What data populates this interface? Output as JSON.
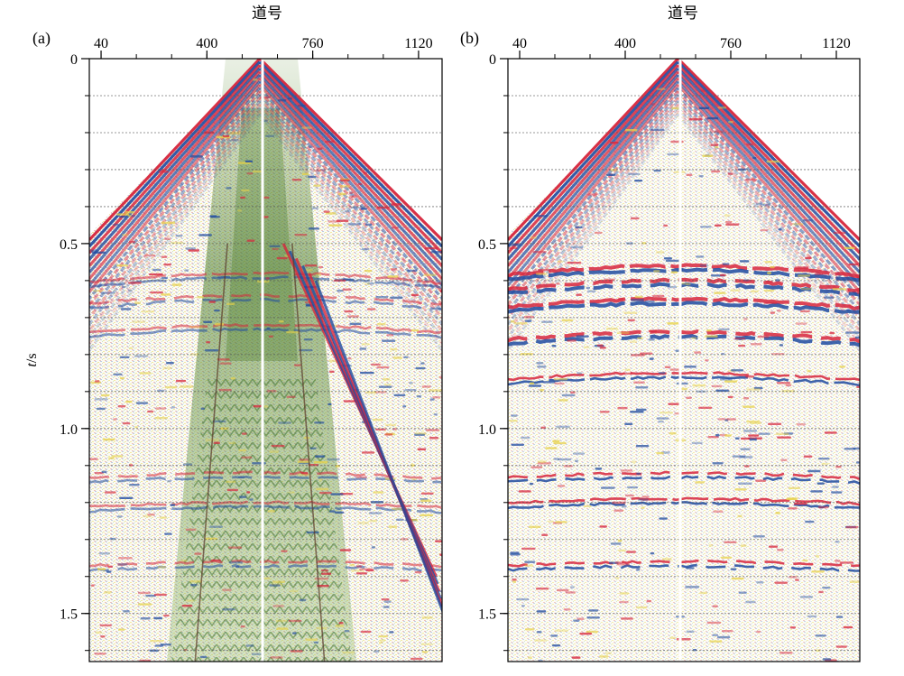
{
  "chart_data": [
    {
      "type": "heatmap",
      "panel_label": "(a)",
      "xlabel": "道号",
      "ylabel_italic": "t",
      "ylabel_unit": "/s",
      "x_ticks": [
        40,
        400,
        760,
        1120
      ],
      "y_ticks": [
        0,
        0.5,
        1.0,
        1.5
      ],
      "y_tick_labels": [
        "0",
        "0.5",
        "1.0",
        "1.5"
      ],
      "xlim": [
        0,
        1200
      ],
      "ylim": [
        0,
        1.63
      ],
      "grid": "horizontal dashed",
      "grid_step_s": 0.1,
      "apex_trace": 580,
      "content": "raw shot gather with strong ground-roll cone",
      "colors": {
        "positive": "#d7263d",
        "negative": "#1f4aa0",
        "weak": "#e7d24a",
        "groundroll": "#4a7a2c"
      }
    },
    {
      "type": "heatmap",
      "panel_label": "(b)",
      "xlabel": "道号",
      "ylabel_italic": "",
      "ylabel_unit": "",
      "x_ticks": [
        40,
        400,
        760,
        1120
      ],
      "y_ticks": [
        0,
        0.5,
        1.0,
        1.5
      ],
      "y_tick_labels": [
        "0",
        "0.5",
        "1.0",
        "1.5"
      ],
      "xlim": [
        0,
        1200
      ],
      "ylim": [
        0,
        1.63
      ],
      "grid": "horizontal dashed",
      "grid_step_s": 0.1,
      "apex_trace": 580,
      "content": "shot gather after ground-roll suppression",
      "colors": {
        "positive": "#d7263d",
        "negative": "#1f4aa0",
        "weak": "#e7d24a"
      }
    }
  ]
}
